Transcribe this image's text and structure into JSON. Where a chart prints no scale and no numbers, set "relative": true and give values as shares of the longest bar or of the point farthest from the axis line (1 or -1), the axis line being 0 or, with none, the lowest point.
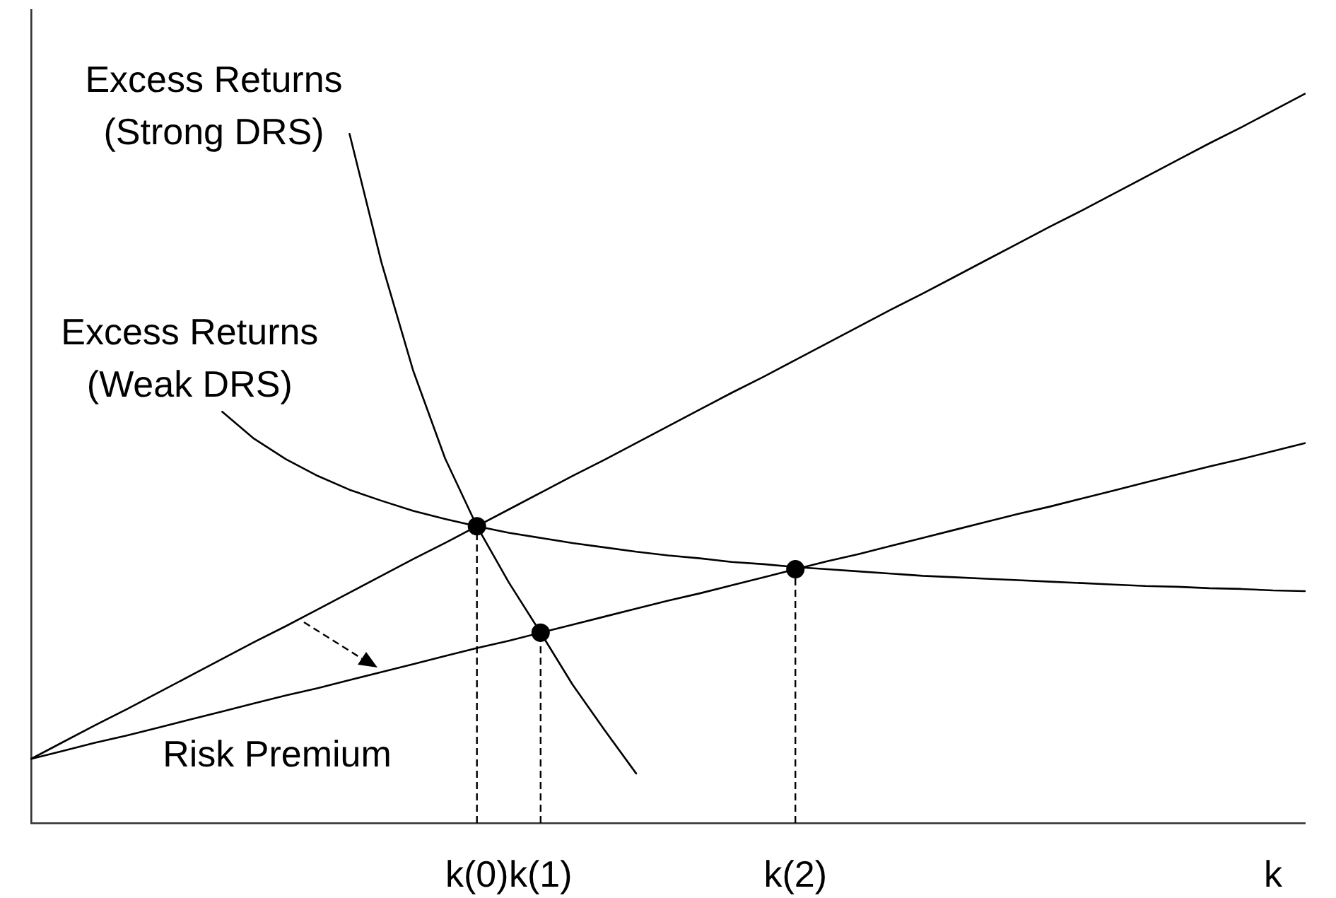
{
  "chart_data": {
    "type": "line",
    "relative": true,
    "categories": [
      null,
      null,
      null,
      null,
      null,
      null,
      null,
      null,
      null,
      null,
      null,
      null,
      null,
      null,
      "k(0)",
      null,
      "k(1)",
      null,
      null,
      null,
      null,
      null,
      null,
      null,
      "k(2)",
      null,
      null,
      null,
      null,
      null,
      null,
      null,
      null,
      null,
      null,
      null,
      null,
      null,
      null,
      "k",
      null
    ],
    "grid": false,
    "legend": false,
    "marker": "none",
    "line_style": "solid",
    "series": [
      {
        "color": "#000000",
        "values": [
          0.088,
          0.111,
          0.134,
          0.156,
          0.179,
          0.202,
          0.225,
          0.248,
          0.27,
          0.293,
          0.316,
          0.339,
          0.362,
          0.384,
          0.407,
          0.43,
          0.453,
          0.476,
          0.498,
          0.521,
          0.544,
          0.567,
          0.59,
          0.612,
          0.635,
          0.658,
          0.681,
          0.704,
          0.726,
          0.749,
          0.772,
          0.795,
          0.818,
          0.84,
          0.863,
          0.886,
          0.909,
          0.932,
          0.954,
          0.977,
          1.0
        ]
      },
      {
        "name": "Risk Premium",
        "color": "#000000",
        "values": [
          0.088,
          0.099,
          0.11,
          0.12,
          0.131,
          0.142,
          0.153,
          0.164,
          0.175,
          0.185,
          0.196,
          0.207,
          0.218,
          0.229,
          0.24,
          0.25,
          0.261,
          0.272,
          0.283,
          0.294,
          0.305,
          0.315,
          0.326,
          0.337,
          0.348,
          0.359,
          0.369,
          0.38,
          0.391,
          0.402,
          0.413,
          0.424,
          0.434,
          0.445,
          0.456,
          0.467,
          0.478,
          0.489,
          0.499,
          0.51,
          0.521
        ]
      },
      {
        "name": "Excess Returns (Strong DRS)",
        "color": "#000000",
        "values": [
          null,
          null,
          null,
          null,
          null,
          null,
          null,
          null,
          null,
          null,
          0.945,
          0.769,
          0.62,
          0.5,
          0.407,
          0.33,
          0.261,
          0.19,
          0.128,
          0.068,
          null,
          null,
          null,
          null,
          null,
          null,
          null,
          null,
          null,
          null,
          null,
          null,
          null,
          null,
          null,
          null,
          null,
          null,
          null,
          null,
          null
        ]
      },
      {
        "name": "Excess Returns (Weak DRS)",
        "color": "#000000",
        "values": [
          null,
          null,
          null,
          null,
          null,
          null,
          0.564,
          0.527,
          0.499,
          0.476,
          0.457,
          0.442,
          0.428,
          0.417,
          0.407,
          0.398,
          0.391,
          0.384,
          0.378,
          0.372,
          0.367,
          0.363,
          0.358,
          0.355,
          0.351,
          0.348,
          0.345,
          0.342,
          0.339,
          0.337,
          0.335,
          0.333,
          0.331,
          0.329,
          0.327,
          0.325,
          0.324,
          0.322,
          0.321,
          0.319,
          0.318
        ]
      },
      {
        "type": "lollipop",
        "marker": "circle",
        "line_style": "dashed",
        "color": "#000000",
        "values": [
          null,
          null,
          null,
          null,
          null,
          null,
          null,
          null,
          null,
          null,
          null,
          null,
          null,
          null,
          0.407,
          null,
          0.261,
          null,
          null,
          null,
          null,
          null,
          null,
          null,
          0.348,
          null,
          null,
          null,
          null,
          null,
          null,
          null,
          null,
          null,
          null,
          null,
          null,
          null,
          null,
          null,
          null
        ]
      }
    ]
  }
}
